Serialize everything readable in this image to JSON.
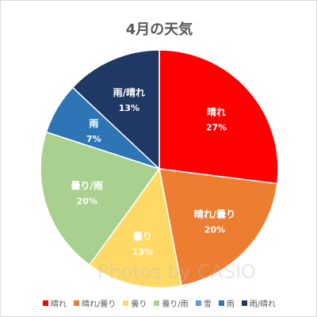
{
  "chart_data": {
    "type": "pie",
    "title": "4月の天気",
    "legend_position": "bottom",
    "start_angle": "12 o'clock, clockwise",
    "slices": [
      {
        "label": "晴れ",
        "value": 27,
        "display": "27%",
        "color": "#ff0000"
      },
      {
        "label": "晴れ/曇り",
        "value": 20,
        "display": "20%",
        "color": "#ed7d31"
      },
      {
        "label": "曇り",
        "value": 13,
        "display": "13%",
        "color": "#ffd966"
      },
      {
        "label": "曇り/雨",
        "value": 20,
        "display": "20%",
        "color": "#a9d08e"
      },
      {
        "label": "雪",
        "value": 0,
        "display": "",
        "color": "#5b9bd5"
      },
      {
        "label": "雨",
        "value": 7,
        "display": "7%",
        "color": "#2e75b6"
      },
      {
        "label": "雨/晴れ",
        "value": 13,
        "display": "13%",
        "color": "#203864"
      }
    ]
  },
  "watermark": "Photos by CASIO"
}
